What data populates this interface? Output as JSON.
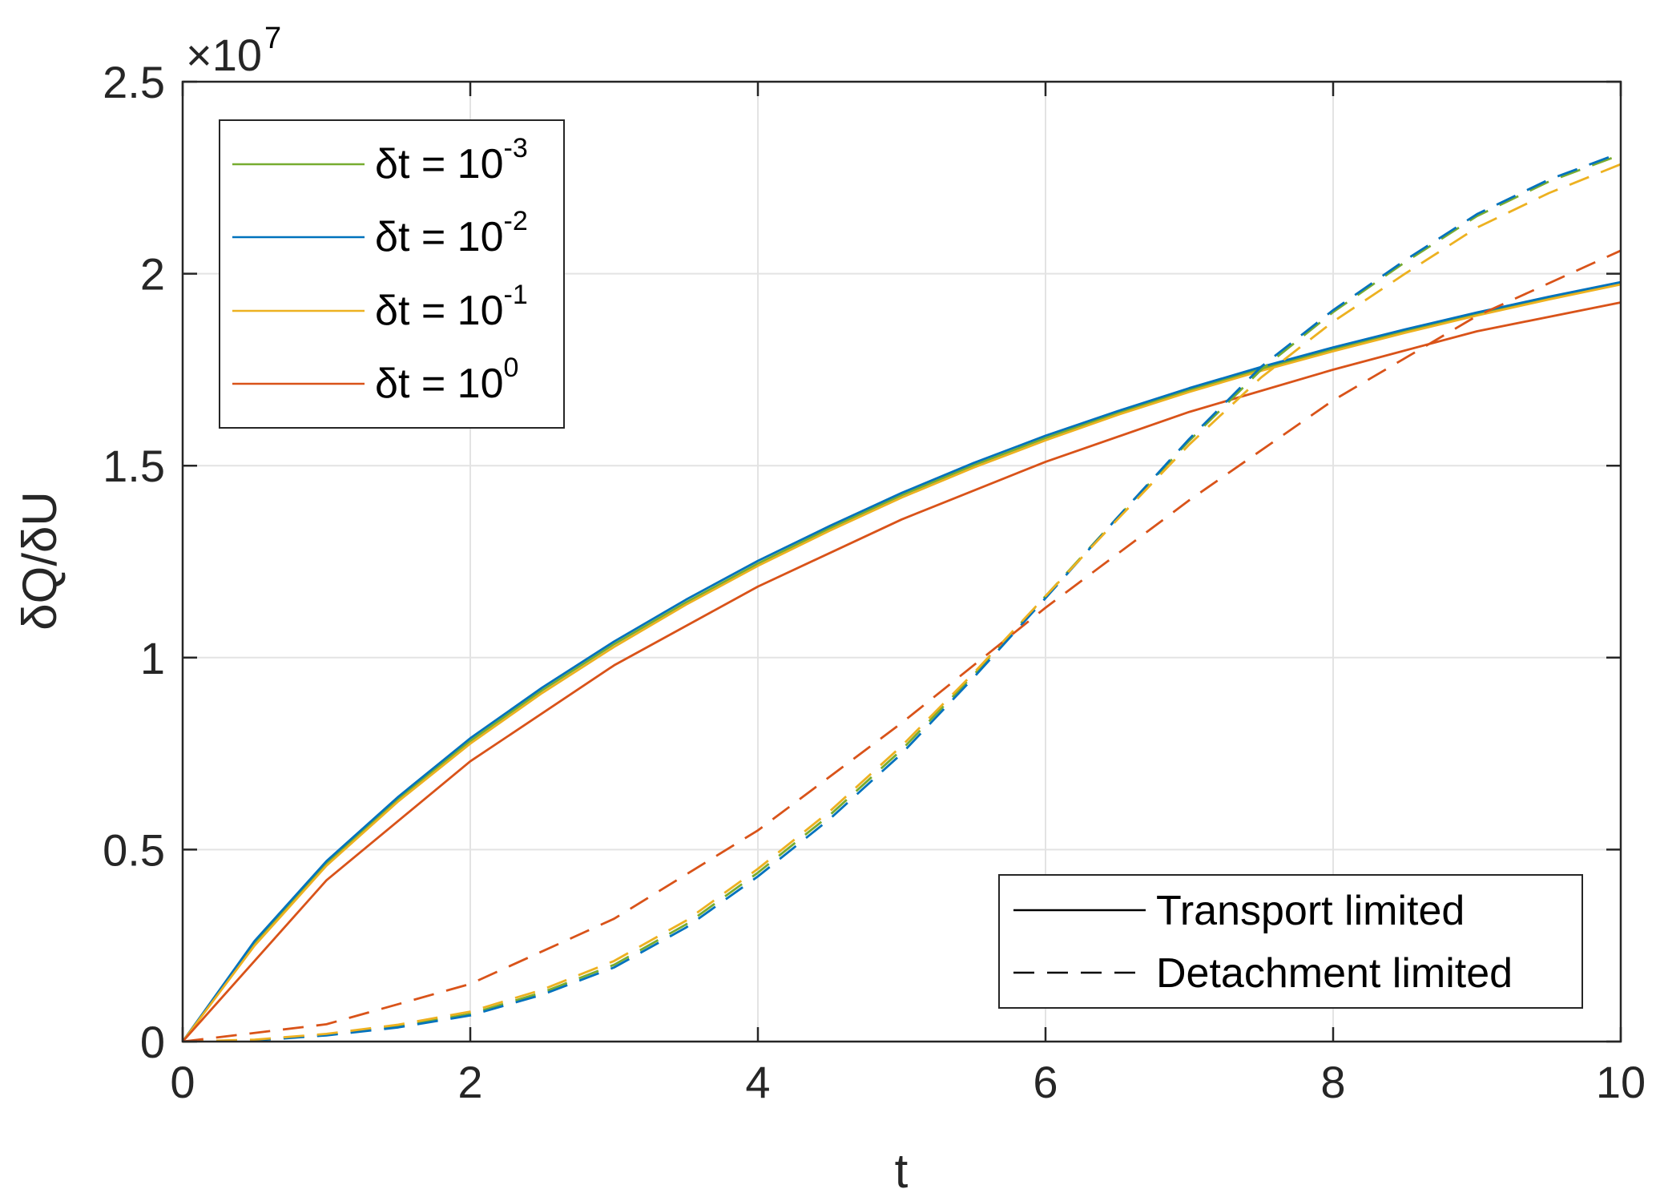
{
  "chart_data": {
    "type": "line",
    "xlabel": "t",
    "ylabel": "δQ/δU",
    "y_multiplier": "×10",
    "y_multiplier_exp": "7",
    "xlim": [
      0,
      10
    ],
    "ylim": [
      0,
      2.5
    ],
    "xticks": [
      0,
      2,
      4,
      6,
      8,
      10
    ],
    "xtick_labels": [
      "0",
      "2",
      "4",
      "6",
      "8",
      "10"
    ],
    "yticks": [
      0,
      0.5,
      1,
      1.5,
      2,
      2.5
    ],
    "ytick_labels": [
      "0",
      "0.5",
      "1",
      "1.5",
      "2",
      "2.5"
    ],
    "grid": true,
    "colors": {
      "dt_1e-3": "#77ac30",
      "dt_1e-2": "#0072bd",
      "dt_1e-1": "#edb120",
      "dt_1e0": "#d95319",
      "grid": "#e3e3e3",
      "axes": "#262626"
    },
    "legend_timestep": {
      "placement": "top-left",
      "entries": [
        {
          "key": "dt_1e-3",
          "label": "δt = 10",
          "exp": "-3"
        },
        {
          "key": "dt_1e-2",
          "label": "δt = 10",
          "exp": "-2"
        },
        {
          "key": "dt_1e-1",
          "label": "δt = 10",
          "exp": "-1"
        },
        {
          "key": "dt_1e0",
          "label": "δt = 10",
          "exp": "0"
        }
      ]
    },
    "legend_style": {
      "placement": "bottom-right",
      "entries": [
        {
          "style": "solid",
          "label": "Transport limited"
        },
        {
          "style": "dashed",
          "label": "Detachment limited"
        }
      ]
    },
    "series": [
      {
        "key": "dt_1e-3",
        "style": "solid",
        "x": [
          0,
          0.5,
          1,
          1.5,
          2,
          2.5,
          3,
          3.5,
          4,
          4.5,
          5,
          5.5,
          6,
          6.5,
          7,
          7.5,
          8,
          8.5,
          9,
          9.5,
          10
        ],
        "y": [
          0,
          0.258,
          0.465,
          0.633,
          0.783,
          0.915,
          1.035,
          1.144,
          1.245,
          1.337,
          1.423,
          1.501,
          1.572,
          1.637,
          1.697,
          1.752,
          1.803,
          1.851,
          1.896,
          1.937,
          1.975
        ]
      },
      {
        "key": "dt_1e-2",
        "style": "solid",
        "x": [
          0,
          0.5,
          1,
          1.5,
          2,
          2.5,
          3,
          3.5,
          4,
          4.5,
          5,
          5.5,
          6,
          6.5,
          7,
          7.5,
          8,
          8.5,
          9,
          9.5,
          10
        ],
        "y": [
          0,
          0.262,
          0.47,
          0.638,
          0.79,
          0.922,
          1.042,
          1.151,
          1.252,
          1.343,
          1.429,
          1.507,
          1.578,
          1.642,
          1.702,
          1.757,
          1.808,
          1.855,
          1.899,
          1.94,
          1.978
        ]
      },
      {
        "key": "dt_1e-1",
        "style": "solid",
        "x": [
          0,
          0.5,
          1,
          1.5,
          2,
          2.5,
          3,
          3.5,
          4,
          4.5,
          5,
          5.5,
          6,
          6.5,
          7,
          7.5,
          8,
          8.5,
          9,
          9.5,
          10
        ],
        "y": [
          0,
          0.25,
          0.458,
          0.626,
          0.776,
          0.908,
          1.028,
          1.138,
          1.239,
          1.331,
          1.417,
          1.495,
          1.566,
          1.632,
          1.692,
          1.747,
          1.798,
          1.846,
          1.891,
          1.933,
          1.972
        ]
      },
      {
        "key": "dt_1e0",
        "style": "solid",
        "x": [
          0,
          1,
          2,
          3,
          4,
          5,
          6,
          7,
          8,
          9,
          10
        ],
        "y": [
          0,
          0.42,
          0.73,
          0.98,
          1.185,
          1.36,
          1.51,
          1.64,
          1.75,
          1.85,
          1.925
        ]
      },
      {
        "key": "dt_1e-3",
        "style": "dashed",
        "x": [
          0,
          0.5,
          1,
          1.5,
          2,
          2.5,
          3,
          3.5,
          4,
          4.5,
          5,
          5.5,
          6,
          6.5,
          7,
          7.5,
          8,
          8.5,
          9,
          9.5,
          10
        ],
        "y": [
          0,
          0.004,
          0.018,
          0.04,
          0.072,
          0.128,
          0.2,
          0.305,
          0.44,
          0.59,
          0.76,
          0.955,
          1.16,
          1.365,
          1.565,
          1.75,
          1.9,
          2.03,
          2.15,
          2.24,
          2.31
        ]
      },
      {
        "key": "dt_1e-2",
        "style": "dashed",
        "x": [
          0,
          0.5,
          1,
          1.5,
          2,
          2.5,
          3,
          3.5,
          4,
          4.5,
          5,
          5.5,
          6,
          6.5,
          7,
          7.5,
          8,
          8.5,
          9,
          9.5,
          10
        ],
        "y": [
          0,
          0.003,
          0.016,
          0.037,
          0.068,
          0.122,
          0.193,
          0.297,
          0.43,
          0.58,
          0.75,
          0.948,
          1.155,
          1.365,
          1.57,
          1.758,
          1.905,
          2.035,
          2.155,
          2.245,
          2.315
        ]
      },
      {
        "key": "dt_1e-1",
        "style": "dashed",
        "x": [
          0,
          0.5,
          1,
          1.5,
          2,
          2.5,
          3,
          3.5,
          4,
          4.5,
          5,
          5.5,
          6,
          6.5,
          7,
          7.5,
          8,
          8.5,
          9,
          9.5,
          10
        ],
        "y": [
          0,
          0.005,
          0.02,
          0.044,
          0.078,
          0.135,
          0.21,
          0.315,
          0.45,
          0.6,
          0.77,
          0.96,
          1.16,
          1.36,
          1.555,
          1.73,
          1.875,
          2.0,
          2.12,
          2.21,
          2.285
        ]
      },
      {
        "key": "dt_1e0",
        "style": "dashed",
        "x": [
          0,
          1,
          2,
          3,
          4,
          5,
          6,
          7,
          8,
          9,
          10
        ],
        "y": [
          0,
          0.045,
          0.15,
          0.32,
          0.55,
          0.83,
          1.13,
          1.41,
          1.67,
          1.89,
          2.06
        ]
      }
    ]
  }
}
